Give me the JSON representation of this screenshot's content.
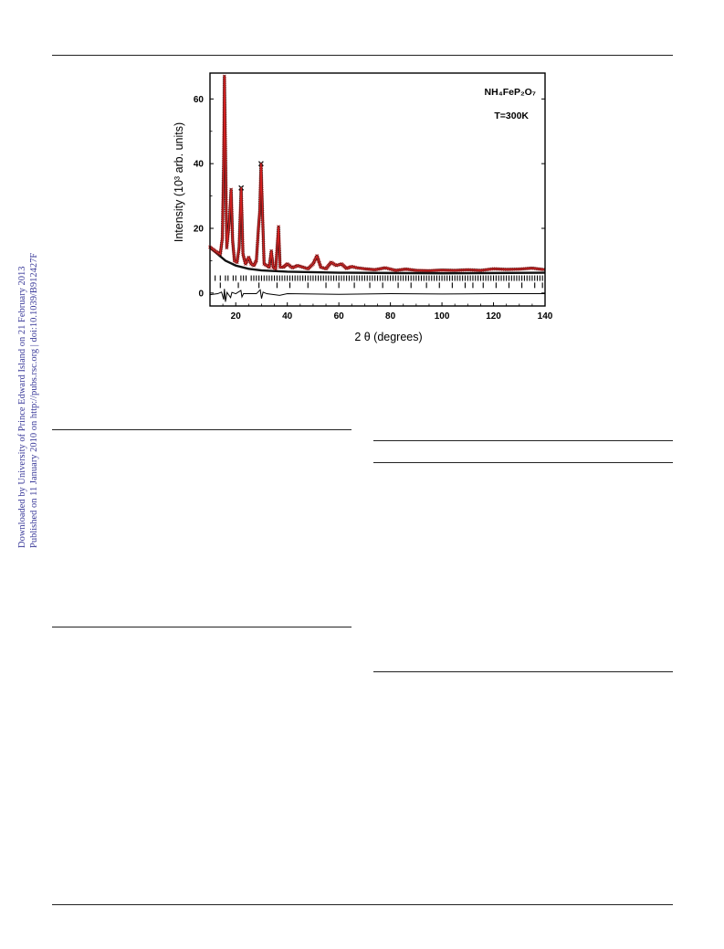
{
  "side_note": {
    "line1": "Downloaded by University of Prince Edward Island on 21 February 2013",
    "line2": "Published on 11 January 2010 on http://pubs.rsc.org | doi:10.1039/B912427F"
  },
  "colors": {
    "calc": "#d42020",
    "obs": "#111111",
    "text_link": "#3b3b9a"
  },
  "chart_data": {
    "type": "line",
    "ylabel": "Intensity (10³ arb. units)",
    "xlabel": "2 θ (degrees)",
    "xlim": [
      10,
      140
    ],
    "ylim": [
      -4,
      68
    ],
    "x_ticks": [
      20,
      40,
      60,
      80,
      100,
      120,
      140
    ],
    "y_ticks": [
      0,
      20,
      40,
      60
    ],
    "annotations": [
      "NH₄FeP₂O₇",
      "T=300K"
    ],
    "series": [
      {
        "points": [
          [
            10,
            14.2
          ],
          [
            12,
            13
          ],
          [
            14,
            12
          ],
          [
            14.8,
            17
          ],
          [
            15.3,
            40
          ],
          [
            15.6,
            67
          ],
          [
            16,
            45
          ],
          [
            16.5,
            14
          ],
          [
            17.5,
            22
          ],
          [
            18.2,
            32
          ],
          [
            18.8,
            16
          ],
          [
            19.5,
            10
          ],
          [
            20.5,
            9.5
          ],
          [
            21.3,
            14
          ],
          [
            22.1,
            32.5
          ],
          [
            22.8,
            12
          ],
          [
            23.8,
            9
          ],
          [
            25,
            11
          ],
          [
            26,
            9
          ],
          [
            27,
            8.5
          ],
          [
            28,
            10
          ],
          [
            28.8,
            20
          ],
          [
            29.3,
            25
          ],
          [
            29.8,
            40
          ],
          [
            30.4,
            24
          ],
          [
            31,
            9
          ],
          [
            32,
            8.5
          ],
          [
            33,
            8
          ],
          [
            33.8,
            13
          ],
          [
            34.5,
            8
          ],
          [
            35.5,
            7.5
          ],
          [
            36.6,
            20.5
          ],
          [
            37.2,
            8
          ],
          [
            38.5,
            8
          ],
          [
            40,
            9
          ],
          [
            42,
            7.8
          ],
          [
            44,
            8.5
          ],
          [
            46,
            8
          ],
          [
            48,
            7.5
          ],
          [
            50,
            9
          ],
          [
            51.5,
            11.5
          ],
          [
            53,
            8
          ],
          [
            55,
            7.5
          ],
          [
            57,
            9.5
          ],
          [
            59,
            8.5
          ],
          [
            61,
            9
          ],
          [
            63,
            7.6
          ],
          [
            65,
            8.2
          ],
          [
            67,
            7.8
          ],
          [
            70,
            7.5
          ],
          [
            74,
            7.2
          ],
          [
            78,
            7.8
          ],
          [
            82,
            7.0
          ],
          [
            86,
            7.4
          ],
          [
            90,
            7.0
          ],
          [
            95,
            6.9
          ],
          [
            100,
            7.1
          ],
          [
            105,
            7.0
          ],
          [
            110,
            7.2
          ],
          [
            115,
            7.0
          ],
          [
            120,
            7.5
          ],
          [
            125,
            7.3
          ],
          [
            130,
            7.4
          ],
          [
            135,
            7.7
          ],
          [
            140,
            7.2
          ]
        ]
      }
    ],
    "background": [
      [
        10,
        14
      ],
      [
        13,
        12
      ],
      [
        16,
        10
      ],
      [
        20,
        8.5
      ],
      [
        25,
        7.5
      ],
      [
        30,
        7
      ],
      [
        40,
        6.6
      ],
      [
        60,
        6.3
      ],
      [
        80,
        6.2
      ],
      [
        100,
        6.1
      ],
      [
        120,
        6.2
      ],
      [
        140,
        6.3
      ]
    ],
    "reflections_row1": [
      12,
      14,
      16,
      17,
      19,
      20,
      22,
      23,
      24,
      26,
      27,
      28,
      29,
      30,
      31,
      32,
      33,
      34,
      35,
      36,
      37,
      38,
      39,
      40,
      41,
      42,
      43,
      44,
      45,
      46,
      47,
      48,
      49,
      50,
      51,
      52,
      53,
      54,
      55,
      56,
      57,
      58,
      59,
      60,
      61,
      62,
      63,
      64,
      65,
      66,
      67,
      68,
      69,
      70,
      71,
      72,
      73,
      74,
      75,
      76,
      77,
      78,
      79,
      80,
      81,
      82,
      83,
      84,
      85,
      86,
      87,
      88,
      89,
      90,
      91,
      92,
      93,
      94,
      95,
      96,
      97,
      98,
      99,
      100,
      101,
      102,
      103,
      104,
      105,
      106,
      107,
      108,
      109,
      110,
      111,
      112,
      113,
      114,
      115,
      116,
      117,
      118,
      119,
      120,
      121,
      122,
      123,
      124,
      125,
      126,
      127,
      128,
      129,
      130,
      131,
      132,
      133,
      134,
      135,
      136,
      137,
      138,
      139,
      140
    ],
    "reflections_row2": [
      14,
      21,
      29,
      36,
      41,
      48,
      55,
      60,
      66,
      72,
      77,
      83,
      88,
      94,
      99,
      104,
      109,
      112,
      116,
      121,
      126,
      131,
      136,
      139
    ],
    "difference": [
      [
        10,
        -0.3
      ],
      [
        13,
        0
      ],
      [
        14.5,
        0.5
      ],
      [
        15.3,
        -1.8
      ],
      [
        15.6,
        1.5
      ],
      [
        16,
        -2.5
      ],
      [
        16.6,
        0.4
      ],
      [
        18,
        -1.2
      ],
      [
        18.5,
        0.4
      ],
      [
        20,
        0
      ],
      [
        22,
        1
      ],
      [
        22.4,
        -1
      ],
      [
        23,
        0
      ],
      [
        28,
        0
      ],
      [
        29.5,
        1.2
      ],
      [
        30,
        -1.5
      ],
      [
        30.6,
        0.5
      ],
      [
        32,
        0
      ],
      [
        37,
        -0.5
      ],
      [
        40,
        0
      ],
      [
        60,
        -0.2
      ],
      [
        80,
        0
      ],
      [
        100,
        -0.1
      ],
      [
        120,
        0
      ],
      [
        140,
        0
      ]
    ]
  }
}
